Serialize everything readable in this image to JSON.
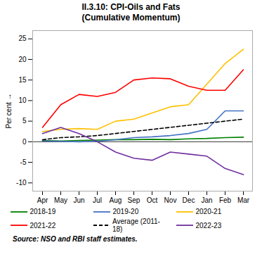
{
  "chart_data": {
    "type": "line",
    "title": "II.3.10: CPI-Oils and Fats\n(Cumulative Momentum)",
    "ylabel": "Per cent",
    "source": "Source: NSO and RBI staff estimates.",
    "categories": [
      "Apr",
      "May",
      "Jun",
      "Jul",
      "Aug",
      "Sep",
      "Oct",
      "Nov",
      "Dec",
      "Jan",
      "Feb",
      "Mar"
    ],
    "series": [
      {
        "name": "2018-19",
        "color": "#008000",
        "line_style": "solid",
        "values": [
          0.3,
          0.2,
          0.3,
          0.4,
          0.5,
          0.5,
          0.6,
          0.5,
          0.7,
          0.8,
          1.0,
          1.1
        ]
      },
      {
        "name": "2019-20",
        "color": "#4472C4",
        "line_style": "solid",
        "values": [
          0.2,
          0.1,
          0.0,
          0.1,
          0.5,
          1.0,
          1.2,
          1.5,
          2.0,
          3.0,
          7.5,
          7.5
        ]
      },
      {
        "name": "2020-21",
        "color": "#FFC000",
        "line_style": "solid",
        "values": [
          2.5,
          3.0,
          3.2,
          3.0,
          5.0,
          5.5,
          7.0,
          8.5,
          9.0,
          14.0,
          19.0,
          22.5
        ]
      },
      {
        "name": "2021-22",
        "color": "#FF0000",
        "line_style": "solid",
        "values": [
          3.5,
          9.0,
          11.5,
          11.0,
          12.0,
          15.0,
          15.5,
          15.3,
          13.5,
          12.5,
          12.5,
          17.5
        ]
      },
      {
        "name": "Average (2011-18)",
        "color": "#000000",
        "line_style": "dashed",
        "values": [
          0.5,
          1.0,
          1.2,
          1.5,
          2.0,
          2.5,
          3.0,
          3.5,
          4.0,
          4.5,
          5.0,
          5.5
        ]
      },
      {
        "name": "2022-23",
        "color": "#7030A0",
        "line_style": "solid",
        "values": [
          2.0,
          3.5,
          2.0,
          0.0,
          -2.5,
          -4.0,
          -4.5,
          -2.5,
          -3.0,
          -3.5,
          -6.5,
          -8.0
        ]
      }
    ],
    "ylim": [
      -12,
      27
    ],
    "yticks": [
      -10,
      -5,
      0,
      5,
      10,
      15,
      20,
      25
    ],
    "grid": false,
    "legend": "bottom"
  }
}
